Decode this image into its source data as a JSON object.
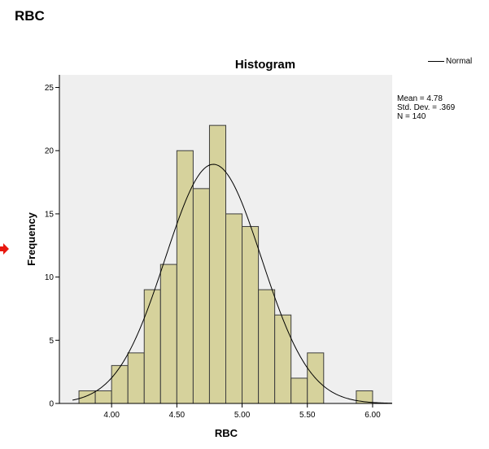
{
  "page": {
    "heading": "RBC"
  },
  "legend": {
    "label": "Normal"
  },
  "stats": {
    "mean": "Mean = 4.78",
    "sd": "Std. Dev. = .369",
    "n": "N = 140"
  },
  "colors": {
    "plot_bg": "#efefef",
    "bar_fill": "#d6d29c",
    "bar_stroke": "#3c3c3c",
    "arrow": "#e8180f"
  },
  "chart_data": {
    "type": "bar",
    "title": "Histogram",
    "xlabel": "RBC",
    "ylabel": "Frequency",
    "xlim": [
      3.6,
      6.15
    ],
    "ylim": [
      0,
      26
    ],
    "bin_width": 0.125,
    "bins": [
      {
        "start": 3.75,
        "count": 1
      },
      {
        "start": 3.875,
        "count": 1
      },
      {
        "start": 4.0,
        "count": 3
      },
      {
        "start": 4.125,
        "count": 4
      },
      {
        "start": 4.25,
        "count": 9
      },
      {
        "start": 4.375,
        "count": 11
      },
      {
        "start": 4.5,
        "count": 20
      },
      {
        "start": 4.625,
        "count": 17
      },
      {
        "start": 4.75,
        "count": 22
      },
      {
        "start": 4.875,
        "count": 15
      },
      {
        "start": 5.0,
        "count": 14
      },
      {
        "start": 5.125,
        "count": 9
      },
      {
        "start": 5.25,
        "count": 7
      },
      {
        "start": 5.375,
        "count": 2
      },
      {
        "start": 5.5,
        "count": 4
      },
      {
        "start": 5.875,
        "count": 1
      }
    ],
    "x_ticks": [
      4.0,
      4.5,
      5.0,
      5.5,
      6.0
    ],
    "x_tick_labels": [
      "4.00",
      "4.50",
      "5.00",
      "5.50",
      "6.00"
    ],
    "y_ticks": [
      0,
      5,
      10,
      15,
      20,
      25
    ],
    "y_tick_labels": [
      "0",
      "5",
      "10",
      "15",
      "20",
      "25"
    ],
    "normal_curve": {
      "mean": 4.78,
      "sd": 0.369,
      "n": 140
    }
  }
}
